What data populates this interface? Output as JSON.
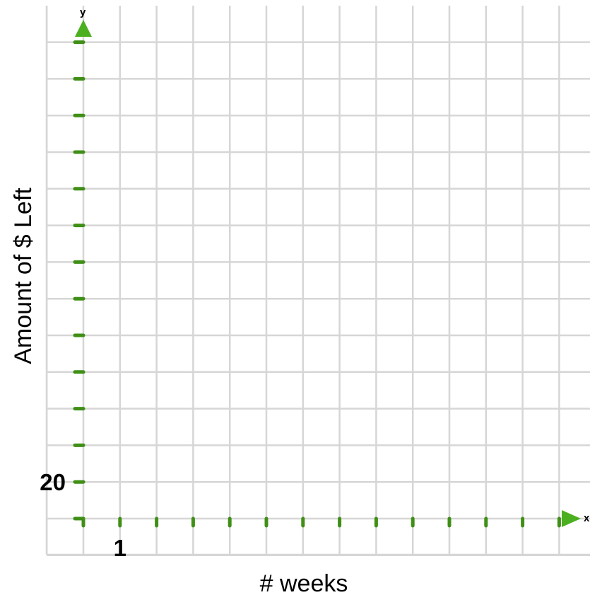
{
  "chart_data": {
    "type": "line",
    "title": "",
    "xlabel": "# weeks",
    "ylabel": "Amount of $ Left",
    "x_axis_letter": "x",
    "y_axis_letter": "y",
    "x_tick_labels": [
      {
        "value": 1,
        "label": "1"
      }
    ],
    "y_tick_labels": [
      {
        "value": 20,
        "label": "20"
      }
    ],
    "x_step": 1,
    "y_step": 20,
    "xlim": [
      0,
      13
    ],
    "ylim": [
      0,
      260
    ],
    "grid": true,
    "series": []
  },
  "colors": {
    "axis": "#4caf1f",
    "axis_dark": "#3f8f16",
    "grid": "#d6d6d6",
    "text": "#000000"
  }
}
